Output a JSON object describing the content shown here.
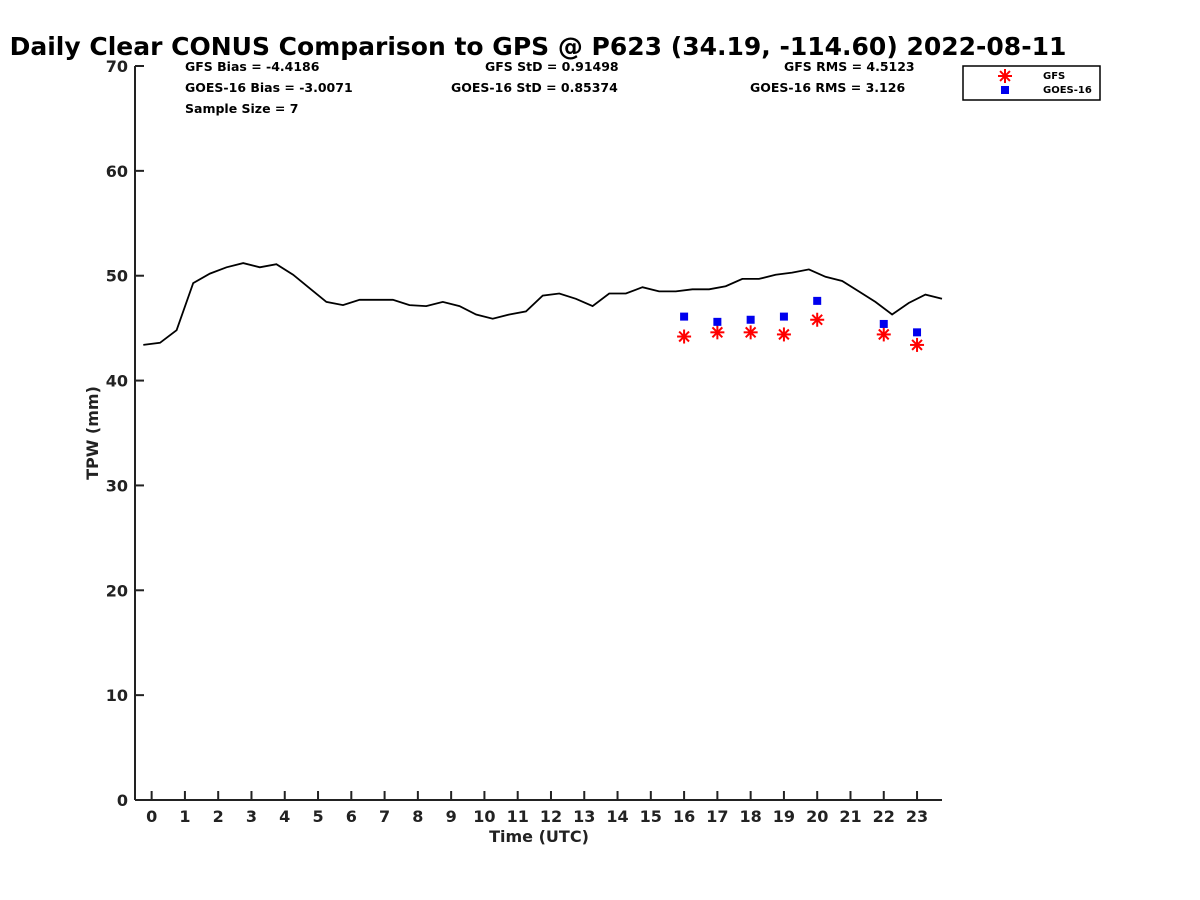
{
  "chart_data": {
    "type": "line",
    "title": "Daily Clear CONUS Comparison to GPS @ P623 (34.19, -114.60) 2022-08-11",
    "xlabel": "Time (UTC)",
    "ylabel": "TPW (mm)",
    "xlim": [
      -0.5,
      23.75
    ],
    "ylim": [
      0,
      70
    ],
    "x_ticks": [
      0,
      1,
      2,
      3,
      4,
      5,
      6,
      7,
      8,
      9,
      10,
      11,
      12,
      13,
      14,
      15,
      16,
      17,
      18,
      19,
      20,
      21,
      22,
      23
    ],
    "y_ticks": [
      0,
      10,
      20,
      30,
      40,
      50,
      60,
      70
    ],
    "grid": false,
    "legend_position": "top-right",
    "stats": {
      "gfs_bias": "GFS Bias = -4.4186",
      "gfs_std": "GFS StD = 0.91498",
      "gfs_rms": "GFS RMS = 4.5123",
      "goes_bias": "GOES-16 Bias = -3.0071",
      "goes_std": "GOES-16 StD = 0.85374",
      "goes_rms": "GOES-16 RMS = 3.126",
      "sample_size": "Sample Size = 7"
    },
    "series": [
      {
        "marker": "line",
        "color": "#000000",
        "x": [
          -0.25,
          0.25,
          0.75,
          1.25,
          1.75,
          2.25,
          2.75,
          3.25,
          3.75,
          4.25,
          4.75,
          5.25,
          5.75,
          6.25,
          6.75,
          7.25,
          7.75,
          8.25,
          8.75,
          9.25,
          9.75,
          10.25,
          10.75,
          11.25,
          11.75,
          12.25,
          12.75,
          13.25,
          13.75,
          14.25,
          14.75,
          15.25,
          15.75,
          16.25,
          16.75,
          17.25,
          17.75,
          18.25,
          18.75,
          19.25,
          19.75,
          20.25,
          20.75,
          21.25,
          21.75,
          22.25,
          22.75,
          23.25,
          23.75
        ],
        "y": [
          43.4,
          43.6,
          44.8,
          49.3,
          50.2,
          50.8,
          51.2,
          50.8,
          51.1,
          50.1,
          48.8,
          47.5,
          47.2,
          47.7,
          47.7,
          47.7,
          47.2,
          47.1,
          47.5,
          47.1,
          46.3,
          45.9,
          46.3,
          46.6,
          48.1,
          48.3,
          47.8,
          47.1,
          48.3,
          48.3,
          48.9,
          48.5,
          48.5,
          48.7,
          48.7,
          49.0,
          49.7,
          49.7,
          50.1,
          50.3,
          50.6,
          49.9,
          49.5,
          48.5,
          47.5,
          46.3,
          47.4,
          48.2,
          47.8
        ]
      },
      {
        "name": "GFS",
        "marker": "asterisk",
        "color": "#ff0000",
        "x": [
          16,
          17,
          18,
          19,
          20,
          22,
          23
        ],
        "y": [
          44.2,
          44.6,
          44.6,
          44.4,
          45.8,
          44.4,
          43.4
        ]
      },
      {
        "name": "GOES-16",
        "marker": "square",
        "color": "#0000ee",
        "x": [
          16,
          17,
          18,
          19,
          20,
          22,
          23
        ],
        "y": [
          46.1,
          45.6,
          45.8,
          46.1,
          47.6,
          45.4,
          44.6
        ]
      }
    ]
  }
}
